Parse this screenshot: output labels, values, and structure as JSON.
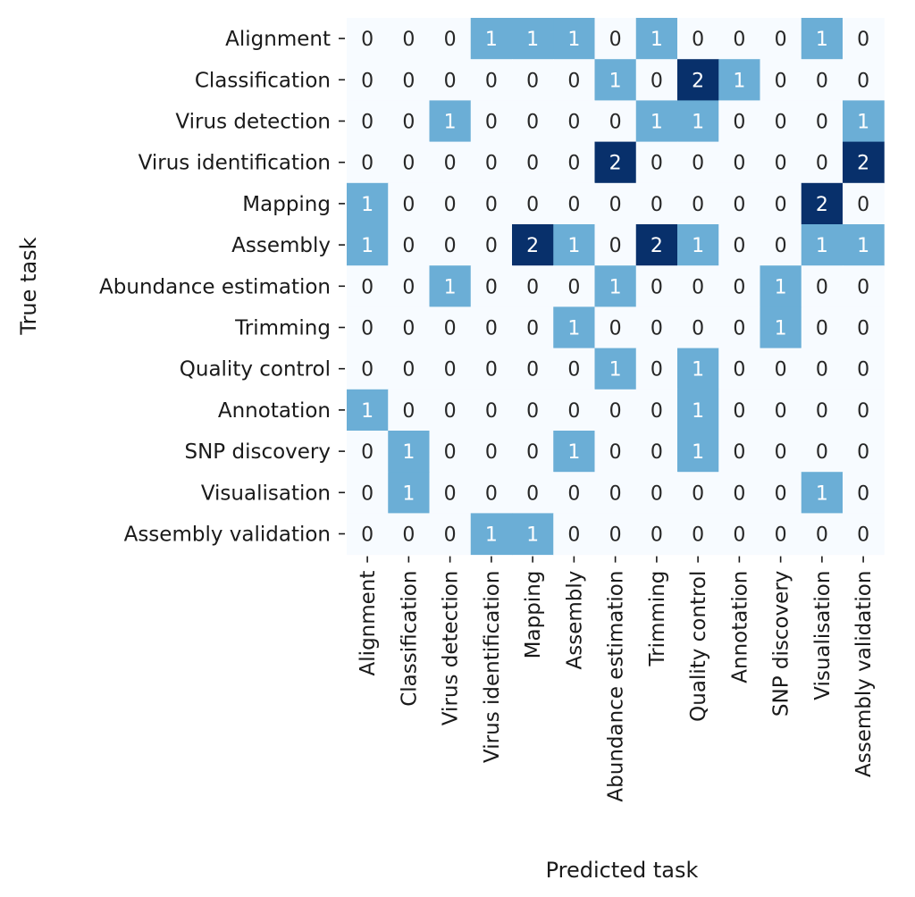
{
  "chart_data": {
    "type": "heatmap",
    "title": "",
    "xlabel": "Predicted task",
    "ylabel": "True task",
    "rows": [
      "Alignment",
      "Classification",
      "Virus detection",
      "Virus identification",
      "Mapping",
      "Assembly",
      "Abundance estimation",
      "Trimming",
      "Quality control",
      "Annotation",
      "SNP discovery",
      "Visualisation",
      "Assembly validation"
    ],
    "columns": [
      "Alignment",
      "Classification",
      "Virus detection",
      "Virus identification",
      "Mapping",
      "Assembly",
      "Abundance estimation",
      "Trimming",
      "Quality control",
      "Annotation",
      "SNP discovery",
      "Visualisation",
      "Assembly validation"
    ],
    "values": [
      [
        0,
        0,
        0,
        1,
        1,
        1,
        0,
        1,
        0,
        0,
        0,
        1,
        0
      ],
      [
        0,
        0,
        0,
        0,
        0,
        0,
        1,
        0,
        2,
        1,
        0,
        0,
        0
      ],
      [
        0,
        0,
        1,
        0,
        0,
        0,
        0,
        1,
        1,
        0,
        0,
        0,
        1
      ],
      [
        0,
        0,
        0,
        0,
        0,
        0,
        2,
        0,
        0,
        0,
        0,
        0,
        2
      ],
      [
        1,
        0,
        0,
        0,
        0,
        0,
        0,
        0,
        0,
        0,
        0,
        2,
        0
      ],
      [
        1,
        0,
        0,
        0,
        2,
        1,
        0,
        2,
        1,
        0,
        0,
        1,
        1
      ],
      [
        0,
        0,
        1,
        0,
        0,
        0,
        1,
        0,
        0,
        0,
        1,
        0,
        0
      ],
      [
        0,
        0,
        0,
        0,
        0,
        1,
        0,
        0,
        0,
        0,
        1,
        0,
        0
      ],
      [
        0,
        0,
        0,
        0,
        0,
        0,
        1,
        0,
        1,
        0,
        0,
        0,
        0
      ],
      [
        1,
        0,
        0,
        0,
        0,
        0,
        0,
        0,
        1,
        0,
        0,
        0,
        0
      ],
      [
        0,
        1,
        0,
        0,
        0,
        1,
        0,
        0,
        1,
        0,
        0,
        0,
        0
      ],
      [
        0,
        1,
        0,
        0,
        0,
        0,
        0,
        0,
        0,
        0,
        0,
        1,
        0
      ],
      [
        0,
        0,
        0,
        1,
        1,
        0,
        0,
        0,
        0,
        0,
        0,
        0,
        0
      ]
    ],
    "value_range": [
      0,
      2
    ],
    "colormap": "Blues",
    "colors": {
      "0": "#f7fbff",
      "1": "#6baed6",
      "2": "#08306b",
      "text_dark": "#262626",
      "text_light": "#ffffff"
    },
    "colorbar": false,
    "grid": false
  }
}
